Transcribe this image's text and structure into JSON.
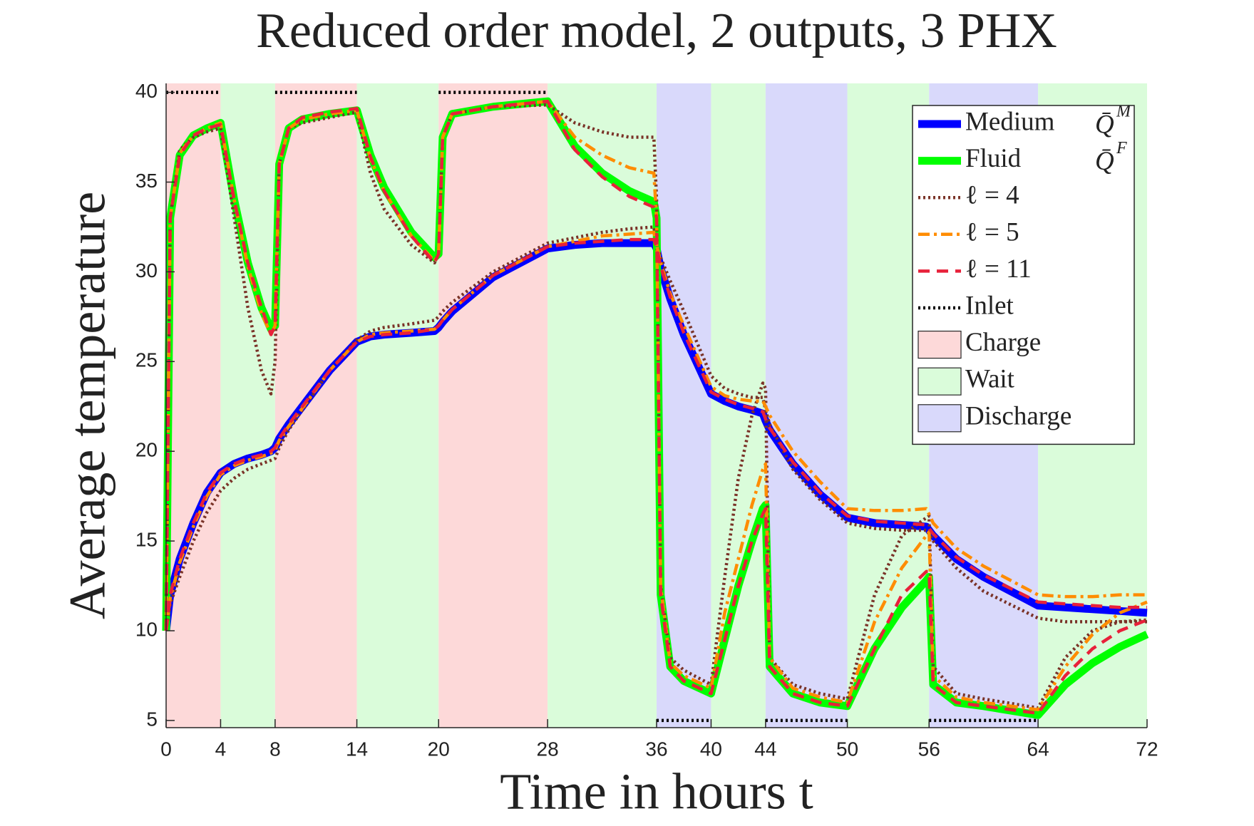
{
  "chart_data": {
    "type": "line",
    "title": "Reduced order model, 2 outputs, 3 PHX",
    "x_label": "Time in hours t",
    "y_label": "Average temperature",
    "xlim": [
      0,
      72
    ],
    "ylim": [
      4.6,
      40.5
    ],
    "xticks": [
      0,
      4,
      8,
      14,
      20,
      28,
      36,
      40,
      44,
      50,
      56,
      64,
      72
    ],
    "yticks": [
      5,
      10,
      15,
      20,
      25,
      30,
      35,
      40
    ],
    "grid": false,
    "legend_position": "upper-right",
    "phase_kinds": [
      {
        "name": "Charge",
        "color": "#fdd9d9"
      },
      {
        "name": "Wait",
        "color": "#dafcda"
      },
      {
        "name": "Discharge",
        "color": "#d9d9fb"
      }
    ],
    "phases": [
      {
        "kind": 0,
        "start": 0,
        "end": 4
      },
      {
        "kind": 1,
        "start": 4,
        "end": 8
      },
      {
        "kind": 0,
        "start": 8,
        "end": 14
      },
      {
        "kind": 1,
        "start": 14,
        "end": 20
      },
      {
        "kind": 0,
        "start": 20,
        "end": 28
      },
      {
        "kind": 1,
        "start": 28,
        "end": 36
      },
      {
        "kind": 2,
        "start": 36,
        "end": 40
      },
      {
        "kind": 1,
        "start": 40,
        "end": 44
      },
      {
        "kind": 2,
        "start": 44,
        "end": 50
      },
      {
        "kind": 1,
        "start": 50,
        "end": 56
      },
      {
        "kind": 2,
        "start": 56,
        "end": 64
      },
      {
        "kind": 1,
        "start": 64,
        "end": 72
      }
    ],
    "x": [
      0,
      0.3,
      1,
      2,
      3,
      4,
      5,
      6,
      7,
      7.7,
      8,
      8.3,
      9,
      10,
      12,
      14,
      15,
      16,
      18,
      19.7,
      20,
      20.3,
      21,
      24,
      28,
      30,
      32,
      34,
      35.8,
      36,
      36.3,
      37,
      38,
      40,
      41,
      42,
      43,
      43.8,
      44,
      44.3,
      46,
      48,
      50,
      52,
      54,
      55.8,
      56,
      56.3,
      58,
      60,
      64,
      66,
      68,
      70,
      72
    ],
    "series": [
      {
        "name": "Medium",
        "symbol": "Q̄",
        "symbol_sup": "M",
        "color": "#0000ff",
        "line_style": "solid",
        "values": [
          10,
          12,
          14,
          16,
          17.7,
          18.8,
          19.3,
          19.6,
          19.8,
          20,
          20.2,
          20.7,
          21.5,
          22.5,
          24.5,
          26.1,
          26.4,
          26.5,
          26.6,
          26.7,
          26.9,
          27.2,
          27.8,
          29.7,
          31.3,
          31.5,
          31.6,
          31.6,
          31.6,
          31.3,
          30.2,
          28.5,
          26.5,
          23.2,
          22.8,
          22.5,
          22.3,
          22.1,
          21.7,
          21.2,
          19.3,
          17.6,
          16.3,
          16,
          15.9,
          15.8,
          15.6,
          15.3,
          14,
          13,
          11.4,
          11.3,
          11.2,
          11.1,
          11
        ]
      },
      {
        "name": "Fluid",
        "symbol": "Q̄",
        "symbol_sup": "F",
        "color": "#00ff00",
        "line_style": "solid",
        "values": [
          10,
          33,
          36.5,
          37.6,
          38,
          38.3,
          34,
          30.5,
          28,
          26.8,
          27,
          36,
          38,
          38.5,
          38.8,
          39,
          36.5,
          34.7,
          32.2,
          30.8,
          31,
          37.5,
          38.8,
          39.2,
          39.5,
          37,
          35.5,
          34.5,
          33.9,
          33,
          12,
          8,
          7.2,
          6.5,
          9.5,
          12.5,
          15,
          16.8,
          17,
          8,
          6.5,
          6,
          5.8,
          9,
          11.3,
          12.8,
          13,
          7,
          6,
          5.8,
          5.3,
          7,
          8.2,
          9.1,
          9.8
        ]
      },
      {
        "name": "ℓ = 4",
        "color": "#7a3328",
        "line_style": "dotted",
        "medium": [
          10,
          11.5,
          13,
          15,
          16.6,
          17.8,
          18.5,
          19,
          19.3,
          19.5,
          19.6,
          20.2,
          21.2,
          22.3,
          24.5,
          26.2,
          26.7,
          26.9,
          27.1,
          27.3,
          27.5,
          27.8,
          28.3,
          30,
          31.6,
          31.9,
          32.2,
          32.4,
          32.5,
          31.5,
          30.8,
          29.5,
          27.8,
          24.2,
          23.5,
          23.2,
          23,
          23,
          22.3,
          21.5,
          19,
          17.3,
          16,
          15.7,
          15.6,
          15.6,
          15.4,
          15,
          13.5,
          12.2,
          10.7,
          10.5,
          10.5,
          10.5,
          10.5
        ],
        "fluid": [
          10,
          33,
          36.8,
          37.5,
          37.8,
          38,
          33,
          28,
          24.5,
          23.2,
          25,
          36,
          38,
          38.3,
          38.6,
          38.9,
          35.5,
          33.5,
          31.5,
          30.5,
          31,
          37.5,
          38.8,
          39.2,
          39.3,
          38.3,
          37.8,
          37.5,
          37.5,
          34,
          12.5,
          8.5,
          7.8,
          7,
          13,
          18.5,
          22,
          23.8,
          23.5,
          8.5,
          7,
          6.5,
          6.2,
          12,
          15.3,
          16.3,
          16.4,
          8,
          6.5,
          6.2,
          5.7,
          8.5,
          10,
          10.5,
          10.6
        ]
      },
      {
        "name": "ℓ = 5",
        "color": "#ff8c00",
        "line_style": "dashdot",
        "medium": [
          10,
          11.8,
          13.8,
          15.8,
          17.5,
          18.7,
          19.2,
          19.5,
          19.7,
          19.9,
          20.1,
          20.6,
          21.4,
          22.4,
          24.5,
          26.1,
          26.5,
          26.6,
          26.7,
          26.8,
          27,
          27.3,
          27.9,
          29.8,
          31.4,
          31.7,
          32,
          32.1,
          32.2,
          31.5,
          30.5,
          28.8,
          27,
          23.6,
          23.1,
          22.9,
          22.8,
          22.8,
          22.5,
          22,
          20,
          18.3,
          16.8,
          16.7,
          16.7,
          16.8,
          16.5,
          16,
          14.6,
          13.6,
          12,
          11.9,
          11.9,
          12,
          12
        ],
        "fluid": [
          10,
          33,
          36.6,
          37.6,
          38,
          38.3,
          34,
          30.3,
          27.7,
          26.5,
          27,
          36,
          38,
          38.5,
          38.8,
          39,
          36.3,
          34.5,
          32,
          30.6,
          31,
          37.5,
          38.8,
          39.2,
          39.5,
          37.5,
          36.5,
          35.8,
          35.5,
          33,
          12.5,
          8.2,
          7.5,
          6.8,
          11,
          14,
          17,
          19,
          19.3,
          8.5,
          6.8,
          6.3,
          6,
          10.5,
          13.5,
          15.3,
          15.5,
          7.5,
          6.3,
          6,
          5.6,
          8,
          9.8,
          11,
          11.6
        ]
      },
      {
        "name": "ℓ = 11",
        "color": "#e8213a",
        "line_style": "dashed",
        "medium": [
          10,
          12,
          14,
          16,
          17.7,
          18.8,
          19.3,
          19.6,
          19.8,
          20,
          20.2,
          20.7,
          21.5,
          22.5,
          24.5,
          26.1,
          26.4,
          26.5,
          26.6,
          26.8,
          27,
          27.3,
          27.9,
          29.8,
          31.4,
          31.6,
          31.7,
          31.8,
          31.8,
          31.4,
          30.3,
          28.6,
          26.6,
          23.3,
          22.9,
          22.6,
          22.4,
          22.2,
          21.8,
          21.3,
          19.4,
          17.7,
          16.4,
          16.1,
          16,
          15.9,
          15.7,
          15.4,
          14.1,
          13.1,
          11.6,
          11.5,
          11.4,
          11.3,
          11.3
        ],
        "fluid": [
          10,
          33,
          36.5,
          37.6,
          38,
          38.2,
          34,
          30.5,
          28,
          26.5,
          27,
          36,
          38,
          38.6,
          38.9,
          39.1,
          36.4,
          34.5,
          32,
          30.5,
          31,
          37.5,
          38.8,
          39.2,
          39.5,
          36.8,
          35.3,
          34.2,
          33.6,
          33,
          12,
          8,
          7.2,
          6.5,
          9.5,
          12.5,
          15,
          16.5,
          16.8,
          8,
          6.5,
          6,
          5.8,
          9,
          12,
          13.3,
          13.3,
          7,
          6,
          5.8,
          5.4,
          7.5,
          9,
          10,
          10.6
        ]
      },
      {
        "name": "Inlet",
        "color": "#000000",
        "line_style": "dotted",
        "values": [
          40,
          40,
          40,
          40,
          40,
          40,
          null,
          null,
          null,
          null,
          40,
          40,
          40,
          40,
          40,
          40,
          null,
          null,
          null,
          null,
          40,
          40,
          40,
          40,
          40,
          null,
          null,
          null,
          null,
          5,
          5,
          5,
          5,
          5,
          null,
          null,
          null,
          null,
          5,
          5,
          5,
          5,
          5,
          null,
          null,
          null,
          5,
          5,
          5,
          5,
          5,
          null,
          null,
          null,
          null
        ]
      }
    ]
  }
}
